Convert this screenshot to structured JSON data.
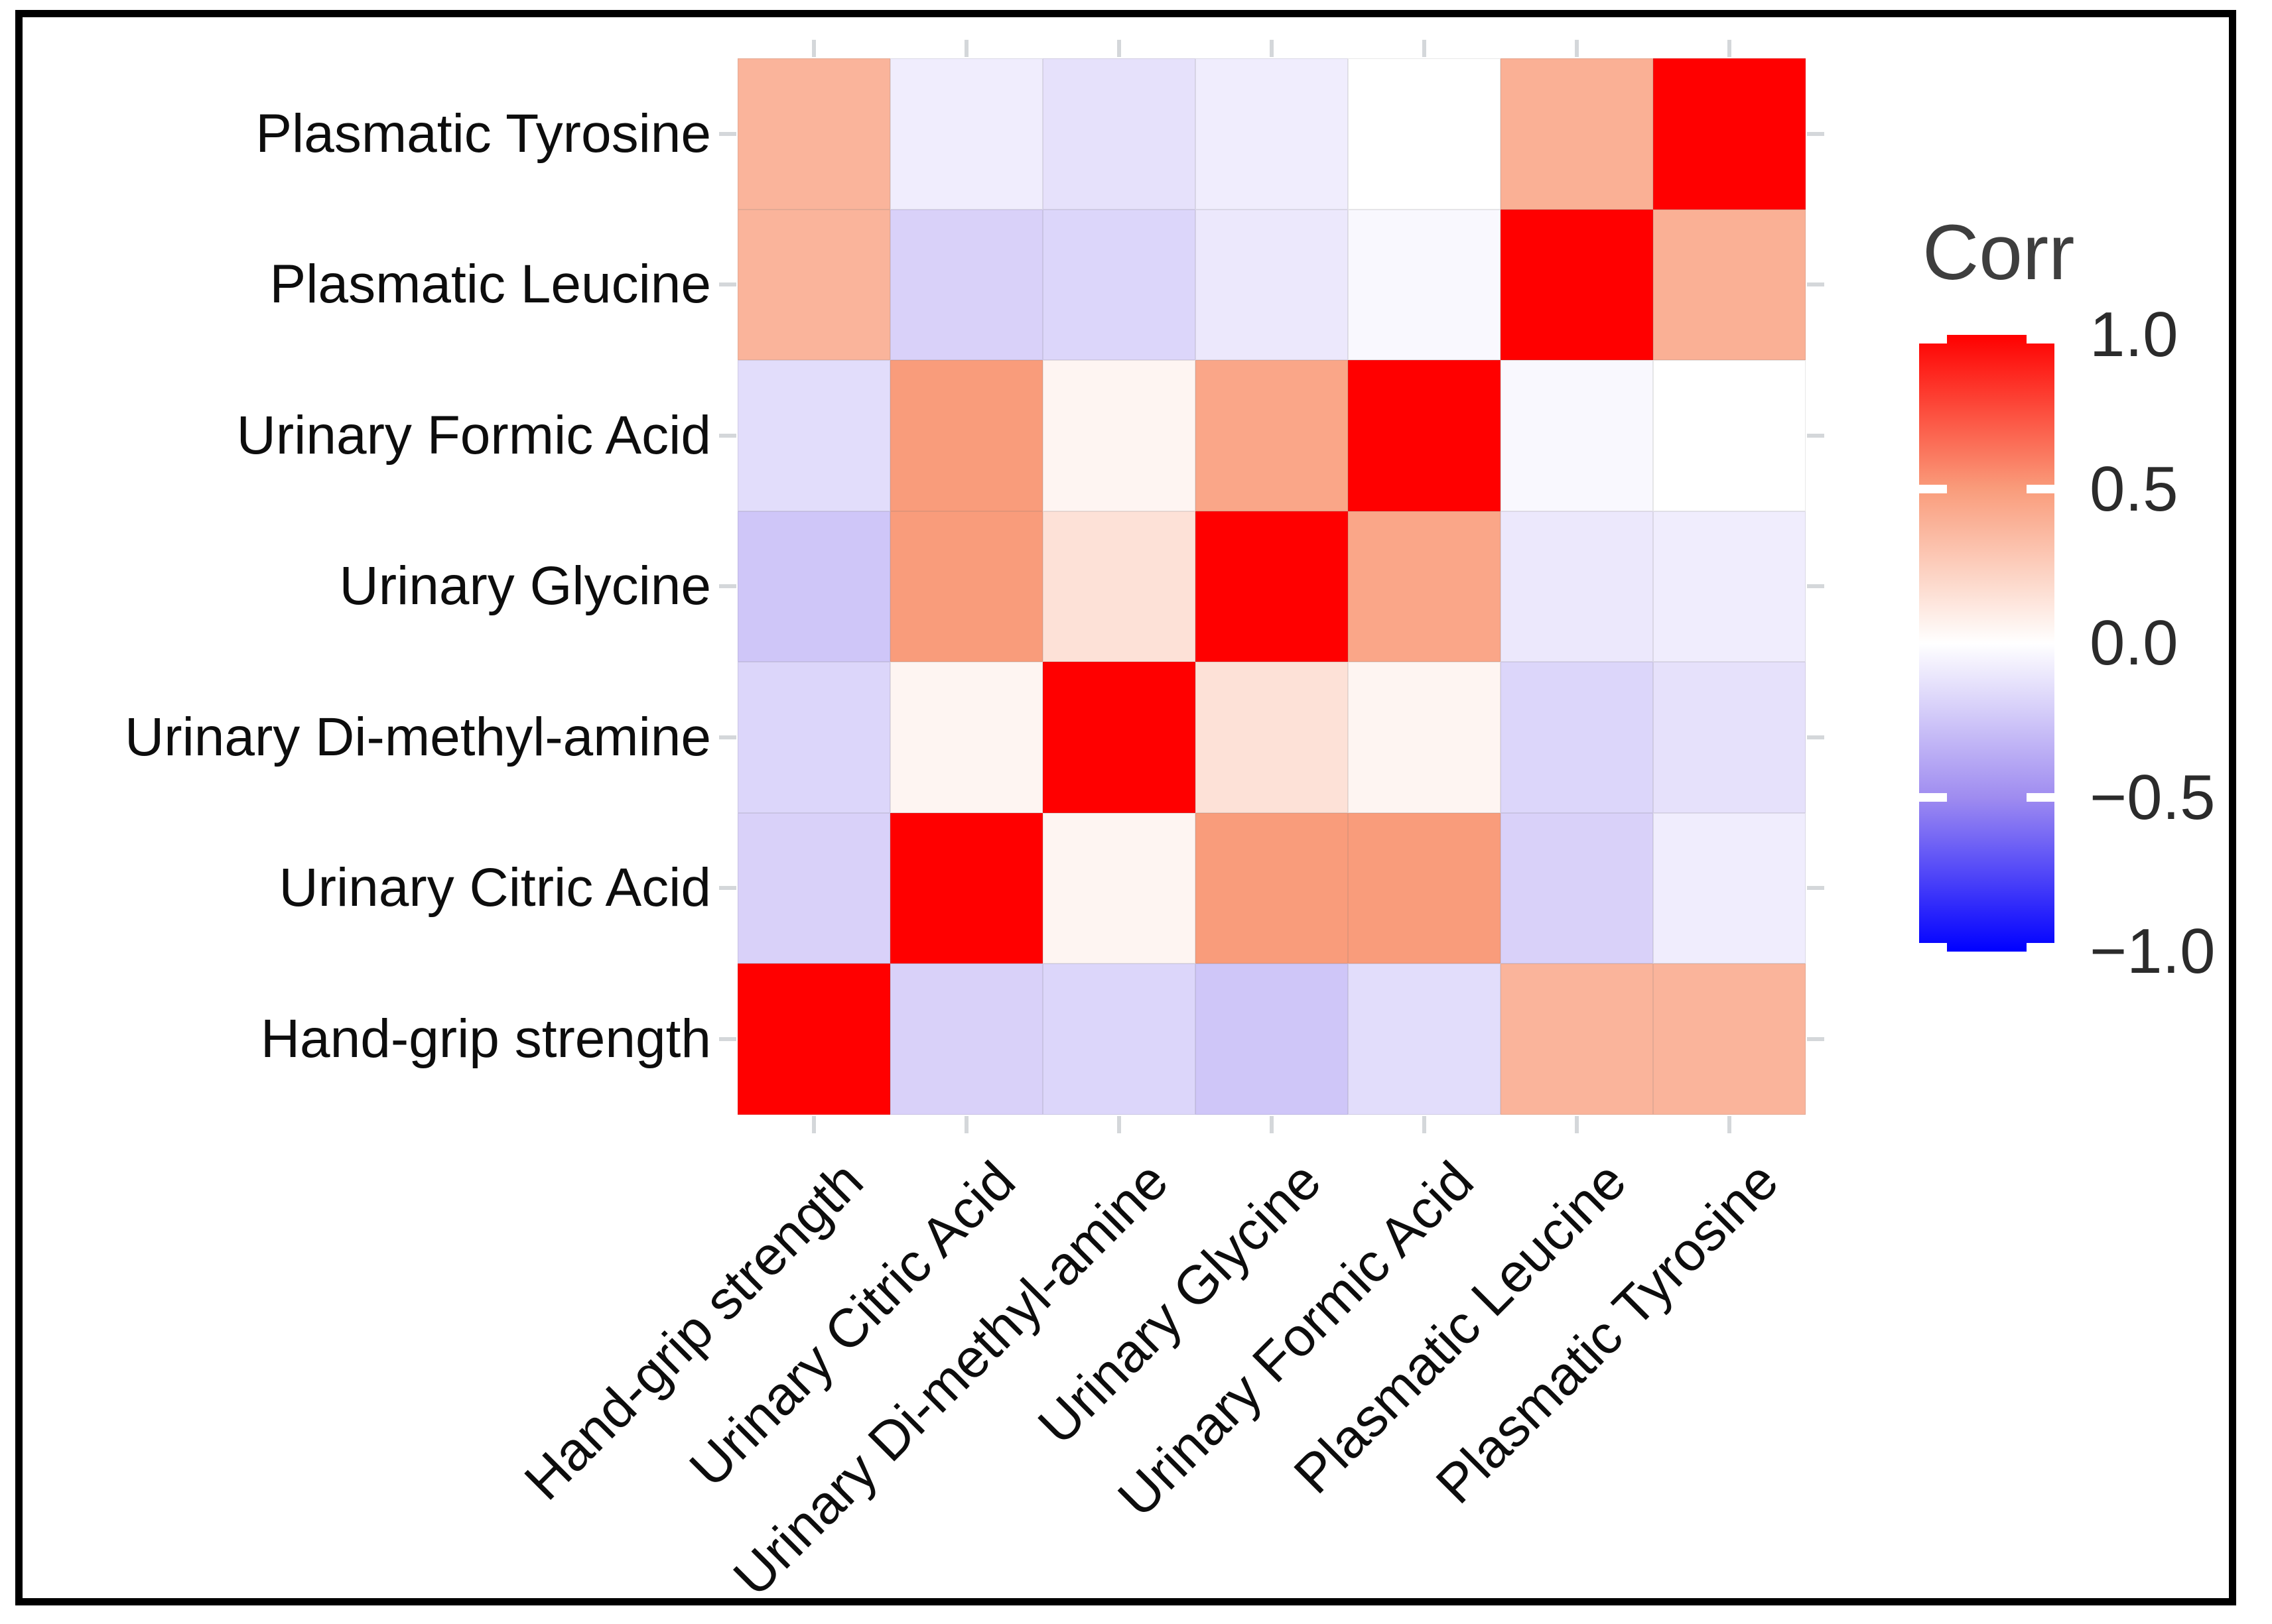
{
  "figure": {
    "background": "#ffffff",
    "border_color": "#000000"
  },
  "chart_data": {
    "type": "heatmap",
    "title": "",
    "x_labels_left_to_right": [
      "Hand-grip strength",
      "Urinary Citric Acid",
      "Urinary Di-methyl-amine",
      "Urinary Glycine",
      "Urinary Formic Acid",
      "Plasmatic Leucine",
      "Plasmatic Tyrosine"
    ],
    "y_labels_top_to_bottom": [
      "Plasmatic Tyrosine",
      "Plasmatic Leucine",
      "Urinary Formic Acid",
      "Urinary Glycine",
      "Urinary Di-methyl-amine",
      "Urinary Citric Acid",
      "Hand-grip strength"
    ],
    "matrix_rows_top_to_bottom": [
      [
        0.38,
        -0.08,
        -0.13,
        -0.08,
        0.0,
        0.4,
        1.0
      ],
      [
        0.38,
        -0.2,
        -0.18,
        -0.1,
        -0.03,
        1.0,
        0.4
      ],
      [
        -0.15,
        0.5,
        0.05,
        0.45,
        1.0,
        -0.03,
        0.0
      ],
      [
        -0.25,
        0.5,
        0.15,
        1.0,
        0.45,
        -0.1,
        -0.08
      ],
      [
        -0.18,
        0.05,
        1.0,
        0.15,
        0.05,
        -0.18,
        -0.13
      ],
      [
        -0.2,
        1.0,
        0.05,
        0.5,
        0.5,
        -0.2,
        -0.08
      ],
      [
        1.0,
        -0.2,
        -0.18,
        -0.25,
        -0.15,
        0.38,
        0.38
      ]
    ],
    "value_range": [
      -1,
      1
    ],
    "colors": {
      "high": "#ff0000",
      "mid": "#ffffff",
      "low": "#0000ff",
      "positive_half": "#f99c7b",
      "negative_half": "#9f8cf0",
      "axis_tick": "#d4d7da"
    },
    "legend": {
      "title": "Corr",
      "position": "right",
      "tick_labels": [
        "1.0",
        "0.5",
        "0.0",
        "−0.5",
        "−1.0"
      ],
      "tick_values": [
        1,
        0.5,
        0,
        -0.5,
        -1
      ]
    }
  }
}
